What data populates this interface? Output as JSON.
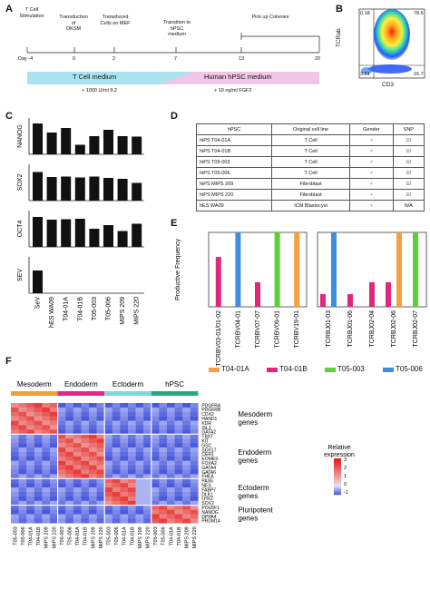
{
  "panels": {
    "A": "A",
    "B": "B",
    "C": "C",
    "D": "D",
    "E": "E",
    "F": "F"
  },
  "timeline": {
    "events": [
      {
        "label": "T Cell\nStimulation",
        "day": "Day -4"
      },
      {
        "label": "Transduction\nof\nOKSM",
        "day": "0"
      },
      {
        "label": "Transduced\nCells on MEF",
        "day": "2"
      },
      {
        "label": "Transition to\nhPSC\nmedium",
        "day": "7"
      },
      {
        "label": "Pick up Colonies",
        "day": "13"
      }
    ],
    "end_day": "20",
    "medium1": "T Cell medium",
    "medium2": "Human hPSC medium",
    "note1": "+ 1000 U/ml IL2",
    "note2": "+ 10 ng/ml FGF2"
  },
  "flow": {
    "q_tl": "0.18",
    "q_tr": "78.6",
    "q_bl": "3.51",
    "q_br": "16.7",
    "xlabel": "CD3",
    "ylabel": "TCRab"
  },
  "table": {
    "headers": [
      "hPSC",
      "Original cell line",
      "Gender",
      "SNP"
    ],
    "rows": [
      [
        "hiPS T04-01A",
        "T Cell",
        "♂",
        "☑"
      ],
      [
        "hiPS T04-01B",
        "T Cell",
        "♂",
        "☑"
      ],
      [
        "hiPS T05-003",
        "T Cell",
        "♂",
        "☑"
      ],
      [
        "hiPS T05-006",
        "T Cell",
        "♂",
        "☑"
      ],
      [
        "hiPS MIPS 209",
        "Fibroblast",
        "♀",
        "☑"
      ],
      [
        "hiPS MIPS 220",
        "Fibroblast",
        "♀",
        "☑"
      ],
      [
        "hES WA09",
        "ICM Blastocyst",
        "♀",
        "N/A"
      ]
    ]
  },
  "chart_data": [
    {
      "type": "bar",
      "panel": "C",
      "categories": [
        "SeV",
        "hES WA09",
        "T04-01A",
        "T04-01B",
        "T05-003",
        "T05-006",
        "MIPS 209",
        "MIPS 220"
      ],
      "series": [
        {
          "name": "NANOG",
          "values": [
            6.8,
            4.8,
            5.8,
            2.1,
            4.0,
            5.4,
            4.0,
            3.9
          ]
        },
        {
          "name": "SOX2",
          "values": [
            6.3,
            5.2,
            5.3,
            5.1,
            5.3,
            5.0,
            4.8,
            3.9
          ]
        },
        {
          "name": "OCT4",
          "values": [
            6.6,
            6.0,
            6.1,
            6.2,
            4.0,
            4.8,
            3.5,
            5.1
          ]
        },
        {
          "name": "SEV",
          "values": [
            5.0,
            0,
            0,
            0,
            0,
            0,
            0,
            0
          ]
        }
      ],
      "ylim": [
        0,
        8
      ]
    },
    {
      "type": "bar",
      "panel": "E",
      "ylabel": "Productive Frequency",
      "ylim": [
        0,
        100
      ],
      "groups": [
        {
          "categories": [
            "TCRBV03-01/01-02",
            "TCRBV04-01",
            "TCRBV07-07",
            "TCRBV09-01",
            "TCRBV19-01"
          ],
          "bars": [
            [
              {
                "s": "T04-01B",
                "v": 67
              }
            ],
            [
              {
                "s": "T05-006",
                "v": 100
              }
            ],
            [
              {
                "s": "T04-01B",
                "v": 33
              }
            ],
            [
              {
                "s": "T05-003",
                "v": 100
              }
            ],
            [
              {
                "s": "T04-01A",
                "v": 100
              }
            ]
          ]
        },
        {
          "categories": [
            "TCRBJ01-03",
            "TCRBJ01-06",
            "TCRBJ02-04",
            "TCRBJ02-06",
            "TCRBJ02-07"
          ],
          "bars": [
            [
              {
                "s": "T04-01B",
                "v": 17
              },
              {
                "s": "T05-006",
                "v": 100
              }
            ],
            [
              {
                "s": "T04-01B",
                "v": 17
              }
            ],
            [
              {
                "s": "T04-01B",
                "v": 33
              }
            ],
            [
              {
                "s": "T04-01B",
                "v": 33
              },
              {
                "s": "T04-01A",
                "v": 100
              }
            ],
            [
              {
                "s": "T05-003",
                "v": 100
              }
            ]
          ]
        }
      ],
      "legend": [
        {
          "name": "T04-01A",
          "color": "#f5a040"
        },
        {
          "name": "T04-01B",
          "color": "#e0287a"
        },
        {
          "name": "T05-003",
          "color": "#5ad03a"
        },
        {
          "name": "T05-006",
          "color": "#3c8fe0"
        }
      ]
    },
    {
      "type": "heatmap",
      "panel": "F",
      "column_groups": [
        "Mesoderm",
        "Endoderm",
        "Ectoderm",
        "hPSC"
      ],
      "group_colors": [
        "#f0a030",
        "#e0288a",
        "#7ad8e0",
        "#2aa880"
      ],
      "columns": [
        "T05-003",
        "T05-006",
        "T04-01A",
        "T04-01B",
        "MIPS 209",
        "MIPS 220"
      ],
      "rows": [
        "PDGFRA",
        "PDGFRB",
        "CDX2",
        "HAND1",
        "KDR",
        "ISL1",
        "GATA2",
        "TBXT",
        "KIT",
        "GSC",
        "SOX17",
        "CER1",
        "EOMES",
        "FOXA2",
        "GATA4",
        "GATA6",
        "FHEA",
        "PAX6",
        "NES",
        "FABP7",
        "DLK1",
        "LHX2",
        "SOX2",
        "POU5F1",
        "NANOG",
        "DPPA4",
        "PRDM14"
      ],
      "row_groups": [
        {
          "label": "Mesoderm\ngenes",
          "count": 7
        },
        {
          "label": "Endoderm\ngenes",
          "count": 10
        },
        {
          "label": "Ectoderm\ngenes",
          "count": 6
        },
        {
          "label": "Pluripotent\ngenes",
          "count": 4
        }
      ],
      "legend_title": "Relative\nexpression",
      "legend_ticks": [
        "3",
        "2",
        "1",
        "0",
        "-1"
      ]
    }
  ]
}
